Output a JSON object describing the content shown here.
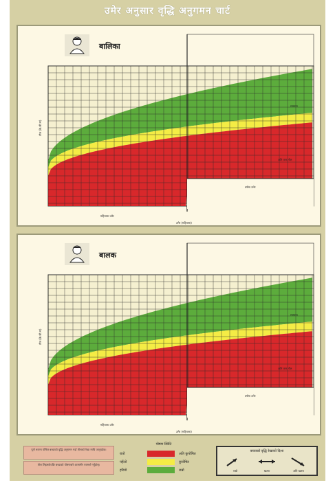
{
  "poster": {
    "title": "उमेर अनुसार वृद्धि अनुगमन चार्ट",
    "colors": {
      "red": "#d8282b",
      "yellow": "#f4ec45",
      "green": "#5cac3c",
      "background": "#d6d0a4",
      "panel": "#fdf8e4"
    }
  },
  "girl_chart": {
    "label": "बालिका",
    "icon": "girl-icon",
    "y_axis_label": "तौल (के.जी.मा)",
    "x_axis_months_label": "महिनामा उमेर",
    "x_axis_years_label": "वर्षमा उमेर",
    "x_axis_age_label": "उमेर (महिनामा)",
    "green_zone_label": "सामान्य",
    "red_zone_label": "अति कम तौल"
  },
  "boy_chart": {
    "label": "बालक",
    "icon": "boy-icon",
    "y_axis_label": "तौल (के.जी.मा)",
    "x_axis_months_label": "महिनामा उमेर",
    "x_axis_years_label": "वर्षमा उमेर",
    "x_axis_age_label": "उमेर (महिनामा)",
    "green_zone_label": "सामान्य",
    "red_zone_label": "अति कम तौल"
  },
  "notes": [
    "पूर्ण रूपमा पोषित बच्चाको वृद्धि अनुगमन गर्दा तौलको रेखा माथि जानुपर्दछ।",
    "तौल लिइसकेपछि बच्चाको पोषणबारे आमासँग परामर्श गर्नुहोस्।"
  ],
  "legend": {
    "title": "पोषण स्थिति",
    "items": [
      {
        "code": "रातो",
        "color": "#d8282b",
        "desc": "अति कुपोषित"
      },
      {
        "code": "पहेंलो",
        "color": "#f4ec45",
        "desc": "कुपोषित"
      },
      {
        "code": "हरियो",
        "color": "#5cac3c",
        "desc": "राम्रो"
      }
    ]
  },
  "direction": {
    "title": "बच्चाको वृद्धि रेखाको दिशा",
    "items": [
      {
        "label": "राम्रो",
        "icon": "arrow-up-icon"
      },
      {
        "label": "खतरा",
        "icon": "arrow-flat-icon"
      },
      {
        "label": "अति खतरा",
        "icon": "arrow-down-icon"
      }
    ]
  }
}
